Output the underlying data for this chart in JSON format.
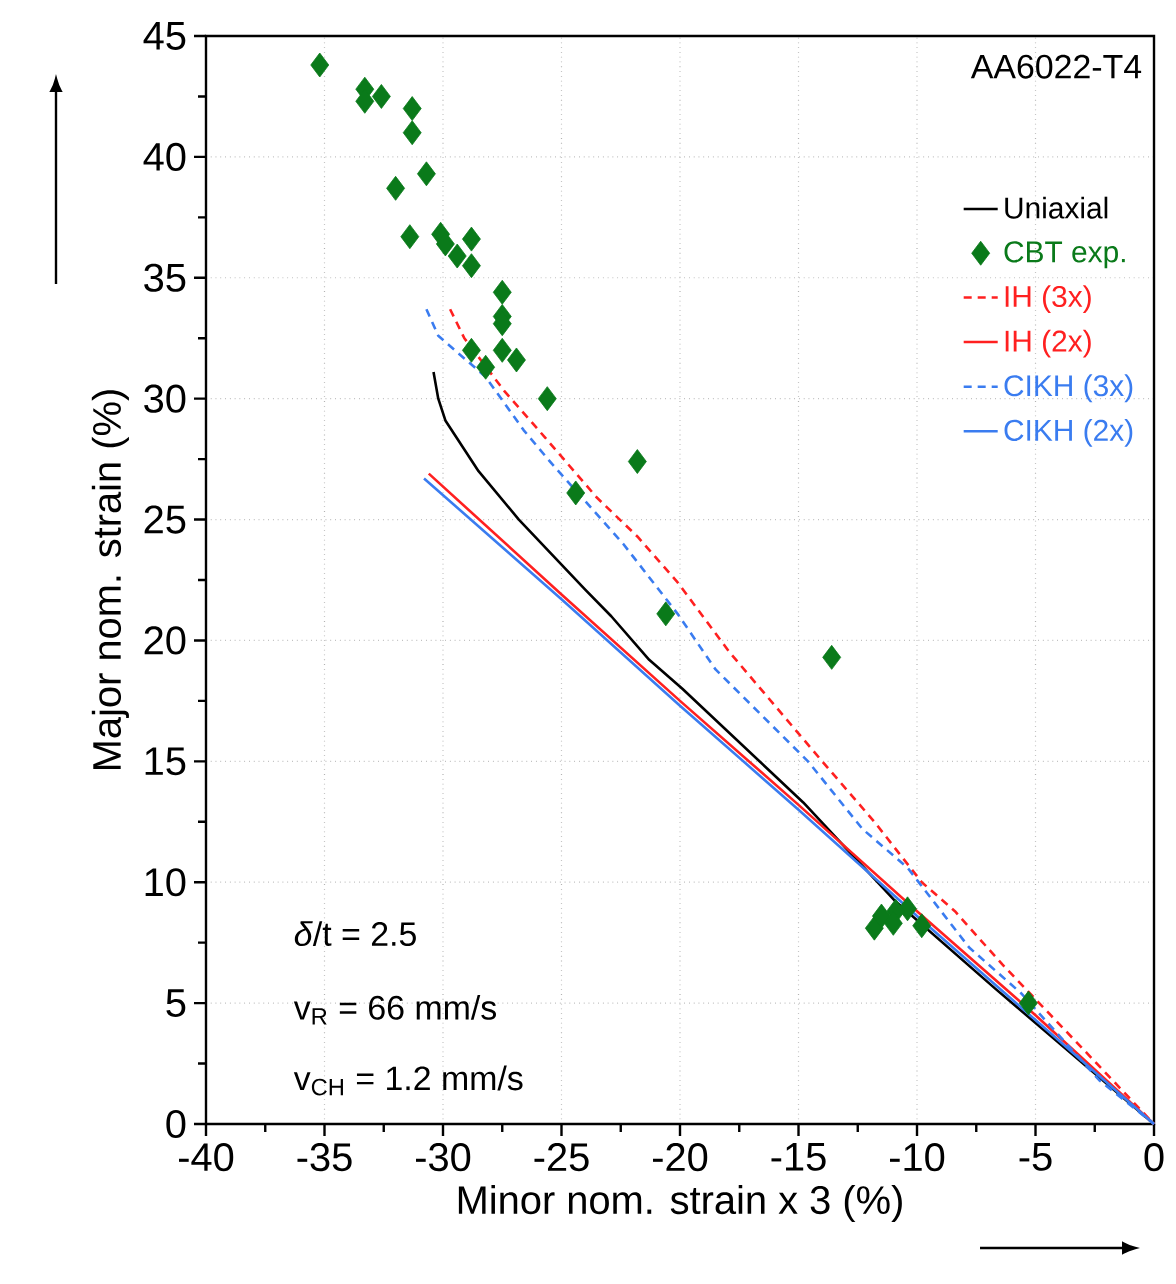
{
  "chart_data": {
    "type": "line",
    "xlabel": "Minor nom. strain x 3 (%)",
    "ylabel": "Major nom. strain (%)",
    "xlim": [
      -40,
      0
    ],
    "xticks": [
      -40,
      -35,
      -30,
      -25,
      -20,
      -15,
      -10,
      -5,
      0
    ],
    "ylim": [
      0,
      45
    ],
    "yticks": [
      0,
      5,
      10,
      15,
      20,
      25,
      30,
      35,
      40,
      45
    ],
    "grid": true,
    "legend": "top right",
    "annotations": [
      "AA6022-T4",
      "*δ*/t  = 2.5",
      "v$_{R}$   = 66 mm/s",
      "v$_{CH}$ = 1.2 mm/s"
    ],
    "series": [
      {
        "name": "Uniaxial",
        "color": "#000000",
        "line_style": "solid",
        "marker": "none",
        "x": [
          -30.4,
          -30.2,
          -29.9,
          -28.5,
          -26.8,
          -24.0,
          -22.9,
          -21.3,
          -19.9,
          -14.8,
          -10.9,
          -6.7,
          0
        ],
        "values": [
          31.1,
          30.0,
          29.1,
          27.0,
          25.0,
          22.1,
          21.0,
          19.2,
          18.0,
          13.3,
          9.2,
          5.6,
          0
        ]
      },
      {
        "name": "CBT exp.",
        "color": "#0a7a1a",
        "type": "scatter",
        "marker": "diamond",
        "x": [
          -35.2,
          -33.3,
          -33.3,
          -32.6,
          -31.3,
          -31.3,
          -30.7,
          -32.0,
          -31.4,
          -30.1,
          -29.9,
          -29.4,
          -28.8,
          -28.8,
          -27.5,
          -27.5,
          -27.5,
          -28.8,
          -28.2,
          -27.5,
          -26.9,
          -25.6,
          -24.4,
          -21.8,
          -20.6,
          -13.6,
          -11.8,
          -10.4,
          -9.8,
          -11.5,
          -10.9,
          -11.0,
          -5.3
        ],
        "values": [
          43.8,
          42.8,
          42.3,
          42.5,
          42.0,
          41.0,
          39.3,
          38.7,
          36.7,
          36.8,
          36.4,
          35.9,
          35.5,
          36.6,
          34.4,
          33.4,
          33.1,
          32.0,
          31.3,
          32.0,
          31.6,
          30.0,
          26.1,
          27.4,
          21.1,
          19.3,
          8.1,
          8.9,
          8.2,
          8.6,
          8.8,
          8.3,
          5.0
        ]
      },
      {
        "name": "IH (3x)",
        "color": "#ff2020",
        "line_style": "dashed",
        "marker": "none",
        "x": [
          -29.7,
          -29.1,
          -27.4,
          -25.7,
          -23.5,
          -21.8,
          -20.1,
          -17.9,
          -14.0,
          -11.8,
          -9.8,
          -8.4,
          -6.4,
          -2.8,
          0
        ],
        "values": [
          33.7,
          32.5,
          30.3,
          28.4,
          25.9,
          24.3,
          22.4,
          19.5,
          15.0,
          12.5,
          10.0,
          8.8,
          6.6,
          2.9,
          0
        ]
      },
      {
        "name": "IH (2x)",
        "color": "#ff2020",
        "line_style": "solid",
        "marker": "none",
        "x": [
          -30.6,
          -25,
          -20,
          -15,
          -10,
          -5,
          0
        ],
        "values": [
          26.9,
          21.9,
          17.5,
          13.2,
          8.8,
          4.5,
          0
        ]
      },
      {
        "name": "CIKH (3x)",
        "color": "#3a7cf0",
        "line_style": "dashed",
        "marker": "none",
        "x": [
          -30.7,
          -30.2,
          -28.2,
          -26.6,
          -25.4,
          -22.4,
          -20.1,
          -18.5,
          -14.6,
          -12.3,
          -10.4,
          -7.8,
          -5.6,
          -2.3,
          0
        ],
        "values": [
          33.7,
          32.6,
          30.9,
          28.7,
          27.3,
          24.0,
          21.1,
          18.8,
          15.0,
          12.2,
          10.6,
          7.3,
          5.4,
          1.8,
          0
        ]
      },
      {
        "name": "CIKH (2x)",
        "color": "#3a7cf0",
        "line_style": "solid",
        "marker": "none",
        "x": [
          -30.8,
          -25,
          -20,
          -15,
          -10,
          -5,
          0
        ],
        "values": [
          26.7,
          21.7,
          17.3,
          13.0,
          8.6,
          4.3,
          0
        ]
      }
    ]
  }
}
